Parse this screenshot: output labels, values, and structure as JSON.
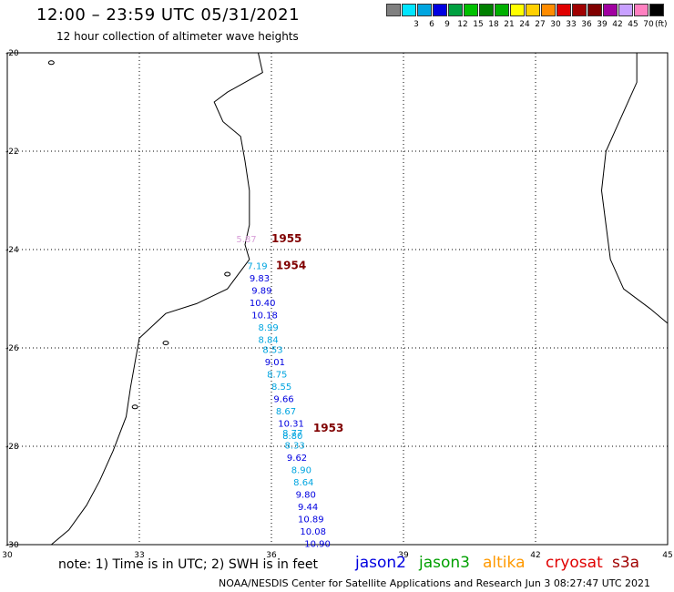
{
  "header": {
    "title": "12:00 – 23:59 UTC 05/31/2021",
    "subtitle": "12 hour collection of altimeter wave heights"
  },
  "legend": {
    "unit": "(ft)",
    "bins": [
      {
        "color": "#808080",
        "label": ""
      },
      {
        "color": "#00e5ff",
        "label": "3"
      },
      {
        "color": "#00a5e0",
        "label": "6"
      },
      {
        "color": "#0000e0",
        "label": "9"
      },
      {
        "color": "#00a040",
        "label": "12"
      },
      {
        "color": "#00c000",
        "label": "15"
      },
      {
        "color": "#008000",
        "label": "18"
      },
      {
        "color": "#00b000",
        "label": "21"
      },
      {
        "color": "#ffff00",
        "label": "24"
      },
      {
        "color": "#ffd000",
        "label": "27"
      },
      {
        "color": "#ff8c00",
        "label": "30"
      },
      {
        "color": "#e00000",
        "label": "33"
      },
      {
        "color": "#a00000",
        "label": "36"
      },
      {
        "color": "#800000",
        "label": "39"
      },
      {
        "color": "#a000a0",
        "label": "42"
      },
      {
        "color": "#c8a0ff",
        "label": "45"
      },
      {
        "color": "#ff80c0",
        "label": "70"
      },
      {
        "color": "#000000",
        "label": ""
      }
    ]
  },
  "map": {
    "lon_ticks": [
      "30",
      "33",
      "36",
      "39",
      "42",
      "45"
    ],
    "lat_ticks": [
      "-20",
      "-22",
      "-24",
      "-26",
      "-28",
      "-30"
    ],
    "colors": {
      "jason2": "#0000e0",
      "light": "#00a5e0",
      "cryosat_time": "#800000",
      "s3a": "#d9a0d9"
    }
  },
  "track_times": [
    {
      "label": "1955",
      "lon": 36.0,
      "lat": -23.85
    },
    {
      "label": "1954",
      "lon": 36.1,
      "lat": -24.4
    },
    {
      "label": "1953",
      "lon": 36.95,
      "lat": -27.7
    }
  ],
  "measurements": [
    {
      "label": "5.87",
      "lon": 35.2,
      "lat": -23.85,
      "color": "#d9a0d9"
    },
    {
      "label": "7.19",
      "lon": 35.45,
      "lat": -24.4,
      "color": "#00a5e0"
    },
    {
      "label": "9.83",
      "lon": 35.5,
      "lat": -24.65,
      "color": "#0000e0"
    },
    {
      "label": "9.89",
      "lon": 35.55,
      "lat": -24.9,
      "color": "#0000e0"
    },
    {
      "label": "10.40",
      "lon": 35.5,
      "lat": -25.15,
      "color": "#0000e0"
    },
    {
      "label": "10.18",
      "lon": 35.55,
      "lat": -25.4,
      "color": "#0000e0"
    },
    {
      "label": "8.99",
      "lon": 35.7,
      "lat": -25.65,
      "color": "#00a5e0"
    },
    {
      "label": "8.84",
      "lon": 35.7,
      "lat": -25.9,
      "color": "#00a5e0"
    },
    {
      "label": "8.53",
      "lon": 35.8,
      "lat": -26.1,
      "color": "#00a5e0"
    },
    {
      "label": "9.01",
      "lon": 35.85,
      "lat": -26.35,
      "color": "#0000e0"
    },
    {
      "label": "8.75",
      "lon": 35.9,
      "lat": -26.6,
      "color": "#00a5e0"
    },
    {
      "label": "8.55",
      "lon": 36.0,
      "lat": -26.85,
      "color": "#00a5e0"
    },
    {
      "label": "9.66",
      "lon": 36.05,
      "lat": -27.1,
      "color": "#0000e0"
    },
    {
      "label": "8.67",
      "lon": 36.1,
      "lat": -27.35,
      "color": "#00a5e0"
    },
    {
      "label": "10.31",
      "lon": 36.15,
      "lat": -27.6,
      "color": "#0000e0"
    },
    {
      "label": "8.77",
      "lon": 36.25,
      "lat": -27.8,
      "color": "#00a5e0"
    },
    {
      "label": "8.80",
      "lon": 36.25,
      "lat": -27.85,
      "color": "#00a5e0"
    },
    {
      "label": "8.33",
      "lon": 36.3,
      "lat": -28.05,
      "color": "#00a5e0"
    },
    {
      "label": "9.62",
      "lon": 36.35,
      "lat": -28.3,
      "color": "#0000e0"
    },
    {
      "label": "8.90",
      "lon": 36.45,
      "lat": -28.55,
      "color": "#00a5e0"
    },
    {
      "label": "8.64",
      "lon": 36.5,
      "lat": -28.8,
      "color": "#00a5e0"
    },
    {
      "label": "9.80",
      "lon": 36.55,
      "lat": -29.05,
      "color": "#0000e0"
    },
    {
      "label": "9.44",
      "lon": 36.6,
      "lat": -29.3,
      "color": "#0000e0"
    },
    {
      "label": "10.89",
      "lon": 36.6,
      "lat": -29.55,
      "color": "#0000e0"
    },
    {
      "label": "10.08",
      "lon": 36.65,
      "lat": -29.8,
      "color": "#0000e0"
    },
    {
      "label": "10.90",
      "lon": 36.75,
      "lat": -30.05,
      "color": "#0000e0"
    }
  ],
  "footer": {
    "note": "note:  1) Time is in UTC;  2) SWH is in feet",
    "satellites": [
      {
        "name": "jason2",
        "color": "#0000e0"
      },
      {
        "name": "jason3",
        "color": "#00a000"
      },
      {
        "name": "altika",
        "color": "#ff9900"
      },
      {
        "name": "cryosat",
        "color": "#e00000"
      },
      {
        "name": "s3a",
        "color": "#a00000"
      }
    ],
    "credit": "NOAA/NESDIS Center for Satellite Applications and Research    Jun  3 08:27:47 UTC 2021"
  }
}
